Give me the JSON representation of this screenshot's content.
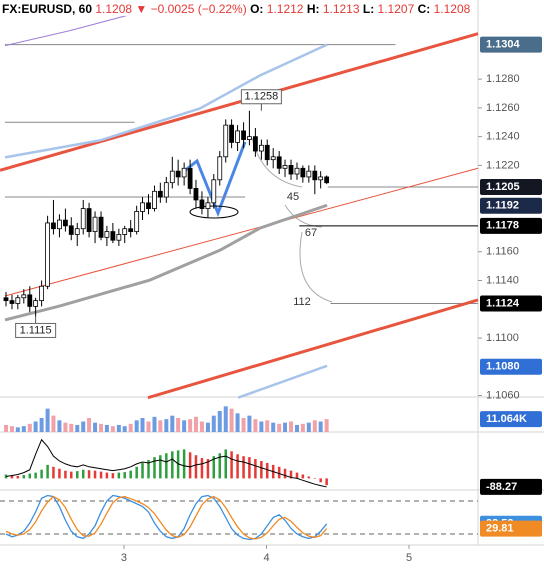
{
  "header": {
    "symbol": "FX:EURUSD, 60",
    "last": "1.1208",
    "arrow": "▼",
    "change": "−0.0025 (−0.22%)",
    "ohlc": [
      {
        "key": "O:",
        "value": "1.1212"
      },
      {
        "key": "H:",
        "value": "1.1213"
      },
      {
        "key": "L:",
        "value": "1.1207"
      },
      {
        "key": "C:",
        "value": "1.1208"
      }
    ]
  },
  "chart_data": [
    {
      "type": "candlestick",
      "x": [
        2.172,
        2.214,
        2.255,
        2.297,
        2.339,
        2.38,
        2.422,
        2.464,
        2.505,
        2.547,
        2.589,
        2.63,
        2.672,
        2.714,
        2.755,
        2.797,
        2.839,
        2.88,
        2.922,
        2.964,
        3.005,
        3.047,
        3.089,
        3.13,
        3.172,
        3.214,
        3.255,
        3.297,
        3.339,
        3.38,
        3.422,
        3.464,
        3.505,
        3.547,
        3.589,
        3.63,
        3.672,
        3.714,
        3.755,
        3.797,
        3.839,
        3.88,
        3.922,
        3.964,
        4.005,
        4.047,
        4.089,
        4.13,
        4.172,
        4.214,
        4.255,
        4.297,
        4.339,
        4.38,
        4.422
      ],
      "open": [
        1.1128,
        1.1126,
        1.1124,
        1.1128,
        1.113,
        1.1122,
        1.1126,
        1.1136,
        1.118,
        1.1176,
        1.1182,
        1.1178,
        1.1172,
        1.1176,
        1.119,
        1.1174,
        1.1184,
        1.117,
        1.1174,
        1.1168,
        1.1172,
        1.1176,
        1.1174,
        1.1188,
        1.1194,
        1.119,
        1.1202,
        1.1198,
        1.1208,
        1.1216,
        1.1212,
        1.1218,
        1.1204,
        1.1196,
        1.119,
        1.1194,
        1.121,
        1.1226,
        1.1248,
        1.1236,
        1.1244,
        1.1238,
        1.124,
        1.123,
        1.1234,
        1.1224,
        1.1226,
        1.1218,
        1.122,
        1.1214,
        1.1218,
        1.1212,
        1.1216,
        1.121,
        1.1212
      ],
      "high": [
        1.1132,
        1.113,
        1.113,
        1.1134,
        1.1136,
        1.1128,
        1.114,
        1.1185,
        1.1196,
        1.1186,
        1.119,
        1.1184,
        1.118,
        1.1196,
        1.1194,
        1.1188,
        1.1188,
        1.1178,
        1.118,
        1.1176,
        1.1178,
        1.1182,
        1.1192,
        1.1198,
        1.12,
        1.1206,
        1.1208,
        1.1212,
        1.1226,
        1.1224,
        1.1222,
        1.1224,
        1.121,
        1.1202,
        1.1198,
        1.1214,
        1.123,
        1.1252,
        1.1252,
        1.1248,
        1.125,
        1.1258,
        1.1246,
        1.1238,
        1.1238,
        1.1232,
        1.123,
        1.1224,
        1.1224,
        1.1222,
        1.122,
        1.122,
        1.122,
        1.1216,
        1.1213
      ],
      "low": [
        1.1122,
        1.112,
        1.112,
        1.1124,
        1.1118,
        1.1115,
        1.1122,
        1.1134,
        1.1172,
        1.117,
        1.1174,
        1.1168,
        1.1164,
        1.1172,
        1.117,
        1.1166,
        1.1168,
        1.1164,
        1.1166,
        1.1164,
        1.1166,
        1.117,
        1.1172,
        1.1182,
        1.1186,
        1.1188,
        1.1194,
        1.1194,
        1.1204,
        1.1206,
        1.1206,
        1.12,
        1.119,
        1.1186,
        1.1184,
        1.119,
        1.1206,
        1.1222,
        1.1232,
        1.123,
        1.1232,
        1.1234,
        1.1226,
        1.1224,
        1.122,
        1.1218,
        1.1214,
        1.1212,
        1.121,
        1.121,
        1.1208,
        1.1208,
        1.12,
        1.1204,
        1.1207
      ],
      "close": [
        1.1126,
        1.1124,
        1.1128,
        1.113,
        1.1122,
        1.1126,
        1.1136,
        1.118,
        1.1176,
        1.1182,
        1.1178,
        1.1172,
        1.1176,
        1.119,
        1.1174,
        1.1184,
        1.117,
        1.1174,
        1.1168,
        1.1172,
        1.1176,
        1.1174,
        1.1188,
        1.1194,
        1.119,
        1.1202,
        1.1198,
        1.1208,
        1.1216,
        1.1212,
        1.1218,
        1.1204,
        1.1196,
        1.119,
        1.1194,
        1.121,
        1.1226,
        1.1248,
        1.1236,
        1.1244,
        1.1238,
        1.124,
        1.123,
        1.1234,
        1.1224,
        1.1226,
        1.1218,
        1.122,
        1.1214,
        1.1218,
        1.1212,
        1.1216,
        1.121,
        1.1212,
        1.1208
      ],
      "up_color": "#ffffff",
      "down_color": "#000000",
      "xlim": [
        2.13,
        5.484
      ],
      "xticks": [
        3,
        4,
        5
      ],
      "ylim": [
        1.1059,
        1.1335
      ],
      "yticks": [
        {
          "value": 1.128,
          "label": "1.1280"
        },
        {
          "value": 1.126,
          "label": "1.1260"
        },
        {
          "value": 1.124,
          "label": "1.1240"
        },
        {
          "value": 1.122,
          "label": "1.1220"
        },
        {
          "value": 1.116,
          "label": "1.1160"
        },
        {
          "value": 1.114,
          "label": "1.1140"
        },
        {
          "value": 1.11,
          "label": "1.1100"
        },
        {
          "value": 1.106,
          "label": "1.1060"
        }
      ],
      "price_labels": [
        {
          "value": 1.1304,
          "label": "1.1304",
          "color": "#4a6d8c"
        },
        {
          "value": 1.1205,
          "label": "1.1205",
          "color": "#131722"
        },
        {
          "value": 1.1192,
          "label": "1.1192",
          "color": "#1c2a4a"
        },
        {
          "value": 1.1178,
          "label": "1.1178",
          "color": "#000000"
        },
        {
          "value": 1.1124,
          "label": "1.1124",
          "color": "#000000"
        },
        {
          "value": 1.108,
          "label": "1.1080",
          "color": "#2f6fd6"
        }
      ],
      "lines": [
        {
          "color": "#e8553e",
          "width": 3,
          "x": [
            2.13,
            5.484
          ],
          "y": [
            1.12166,
            1.13116
          ]
        },
        {
          "color": "#e8553e",
          "width": 3,
          "x": [
            3.168,
            5.484
          ],
          "y": [
            1.10585,
            1.11265
          ]
        },
        {
          "color": "#e8553e",
          "width": 1,
          "x": [
            2.165,
            5.484
          ],
          "y": [
            1.11292,
            1.1218
          ]
        },
        {
          "color": "#a9c4ea",
          "width": 2.5,
          "x": [
            2.165,
            2.832,
            3.533,
            3.954,
            4.425
          ],
          "y": [
            1.12256,
            1.12374,
            1.12596,
            1.12825,
            1.1304
          ]
        },
        {
          "color": "#a9c4ea",
          "width": 2.5,
          "x": [
            3.8,
            4.425
          ],
          "y": [
            1.10585,
            1.10807
          ]
        },
        {
          "color": "#a0a0a0",
          "width": 3,
          "x": [
            2.165,
            2.551,
            3.182,
            3.674,
            3.954,
            4.425
          ],
          "y": [
            1.11126,
            1.11223,
            1.11403,
            1.11611,
            1.11764,
            1.11923
          ]
        },
        {
          "color": "#9c7fd8",
          "width": 1,
          "x": [
            2.165,
            2.621,
            3.042
          ],
          "y": [
            1.13033,
            1.13137,
            1.13248
          ]
        }
      ],
      "hlines": [
        {
          "y": 1.1304,
          "x": [
            2.165,
            4.905
          ],
          "color": "#888888"
        },
        {
          "y": 1.125,
          "x": [
            2.165,
            3.073
          ],
          "color": "#888888"
        },
        {
          "y": 1.1198,
          "x": [
            2.165,
            3.85
          ],
          "color": "#888888"
        },
        {
          "y": 1.1205,
          "x": [
            4.43,
            5.484
          ],
          "color": "#888888"
        },
        {
          "y": 1.1178,
          "x": [
            4.23,
            5.484
          ],
          "color": "#000000"
        },
        {
          "y": 1.1124,
          "x": [
            4.45,
            5.484
          ],
          "color": "#888888"
        }
      ],
      "annotations": [
        {
          "label": "1.1258",
          "x": 3.964,
          "y": 1.1258,
          "boxed": true,
          "above": true
        },
        {
          "label": "1.1115",
          "x": 2.38,
          "y": 1.1115,
          "boxed": true,
          "above": false
        },
        {
          "label": "45",
          "x": 4.186,
          "y": 1.11979,
          "boxed": false
        },
        {
          "label": "67",
          "x": 4.312,
          "y": 1.11729,
          "boxed": false
        },
        {
          "label": "112",
          "x": 4.249,
          "y": 1.11251,
          "boxed": false
        }
      ]
    },
    {
      "type": "bar",
      "values": [
        6,
        5,
        4,
        5,
        7,
        9,
        12,
        20,
        14,
        10,
        8,
        7,
        6,
        9,
        12,
        8,
        7,
        6,
        5,
        6,
        5,
        7,
        10,
        12,
        9,
        13,
        10,
        11,
        14,
        12,
        10,
        11,
        13,
        9,
        8,
        14,
        18,
        22,
        20,
        16,
        12,
        14,
        11,
        9,
        10,
        8,
        7,
        8,
        9,
        6,
        7,
        8,
        10,
        9,
        11.064
      ],
      "ylim": [
        0,
        30
      ],
      "up_color": "#6b9be0",
      "down_color": "#f2a1a8",
      "last_label": "11.064K",
      "label_color": "#2f6fd6"
    },
    {
      "type": "histogram",
      "values": [
        40,
        30,
        25,
        35,
        50,
        60,
        90,
        140,
        120,
        100,
        80,
        70,
        75,
        90,
        85,
        80,
        70,
        60,
        55,
        60,
        65,
        80,
        120,
        160,
        190,
        220,
        240,
        260,
        280,
        290,
        300,
        270,
        240,
        210,
        200,
        230,
        260,
        300,
        280,
        250,
        230,
        220,
        200,
        180,
        160,
        140,
        120,
        100,
        80,
        60,
        40,
        20,
        0,
        -40,
        -70
      ],
      "line": [
        20,
        30,
        40,
        60,
        90,
        250,
        400,
        330,
        230,
        180,
        150,
        130,
        120,
        140,
        120,
        110,
        100,
        90,
        80,
        90,
        100,
        120,
        150,
        170,
        160,
        180,
        190,
        170,
        200,
        150,
        130,
        120,
        140,
        150,
        170,
        200,
        220,
        230,
        200,
        180,
        170,
        150,
        130,
        110,
        90,
        70,
        50,
        30,
        10,
        0,
        -20,
        -40,
        -60,
        -75,
        -88.27
      ],
      "ylim": [
        -120,
        480
      ],
      "up_color": "#2e9e3e",
      "down_color": "#e53935",
      "line_color": "#000000"
    },
    {
      "type": "line",
      "ylim": [
        0,
        100
      ],
      "levels": [
        20,
        80
      ],
      "series": [
        {
          "color": "#3d8fe0",
          "values": [
            20,
            15,
            18,
            25,
            40,
            60,
            85,
            90,
            88,
            70,
            45,
            25,
            15,
            12,
            20,
            35,
            60,
            80,
            90,
            88,
            85,
            80,
            75,
            70,
            60,
            40,
            25,
            15,
            12,
            15,
            30,
            55,
            75,
            88,
            90,
            85,
            70,
            50,
            30,
            18,
            12,
            10,
            12,
            20,
            35,
            50,
            55,
            45,
            30,
            20,
            15,
            12,
            15,
            25,
            38.53
          ]
        },
        {
          "color": "#f08a24",
          "values": [
            25,
            20,
            18,
            20,
            28,
            42,
            62,
            78,
            88,
            82,
            68,
            47,
            28,
            17,
            16,
            22,
            38,
            58,
            77,
            86,
            88,
            84,
            80,
            75,
            68,
            57,
            42,
            27,
            17,
            14,
            19,
            33,
            53,
            73,
            84,
            88,
            82,
            68,
            50,
            33,
            20,
            13,
            11,
            14,
            22,
            35,
            47,
            50,
            43,
            32,
            22,
            16,
            14,
            17,
            29.81
          ]
        }
      ]
    }
  ]
}
